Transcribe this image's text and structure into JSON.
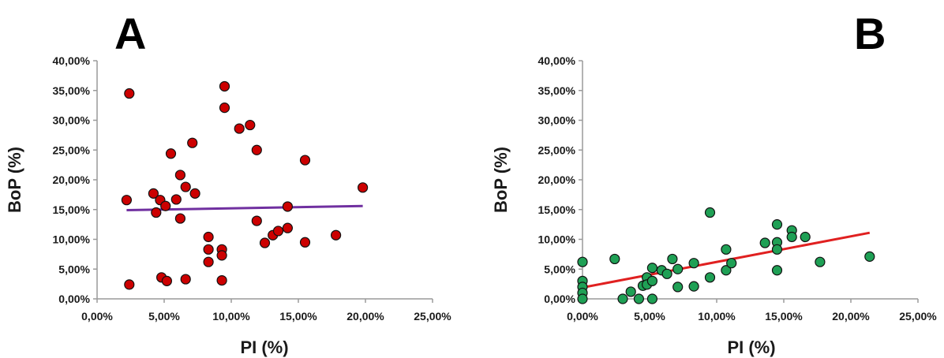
{
  "chart_data": [
    {
      "type": "scatter",
      "panel": "A",
      "xlabel": "PI (%)",
      "ylabel": "BoP (%)",
      "xlim": [
        0,
        25
      ],
      "ylim": [
        0,
        40
      ],
      "x_ticks": [
        "0,00%",
        "5,00%",
        "10,00%",
        "15,00%",
        "20,00%",
        "25,00%"
      ],
      "y_ticks": [
        "0,00%",
        "5,00%",
        "10,00%",
        "15,00%",
        "20,00%",
        "25,00%",
        "30,00%",
        "35,00%",
        "40,00%"
      ],
      "point_color": "#cc0000",
      "trendline_color": "#7030a0",
      "trendline": {
        "x": [
          2.2,
          19.8
        ],
        "y": [
          14.9,
          15.6
        ]
      },
      "points": [
        {
          "x": 2.2,
          "y": 16.6
        },
        {
          "x": 2.4,
          "y": 34.5
        },
        {
          "x": 2.4,
          "y": 2.4
        },
        {
          "x": 4.2,
          "y": 17.7
        },
        {
          "x": 4.4,
          "y": 14.5
        },
        {
          "x": 4.7,
          "y": 16.6
        },
        {
          "x": 4.8,
          "y": 3.6
        },
        {
          "x": 5.1,
          "y": 15.6
        },
        {
          "x": 5.2,
          "y": 3.0
        },
        {
          "x": 5.5,
          "y": 24.4
        },
        {
          "x": 5.9,
          "y": 16.7
        },
        {
          "x": 6.2,
          "y": 20.8
        },
        {
          "x": 6.2,
          "y": 13.5
        },
        {
          "x": 6.6,
          "y": 18.8
        },
        {
          "x": 6.6,
          "y": 3.3
        },
        {
          "x": 7.1,
          "y": 26.2
        },
        {
          "x": 7.3,
          "y": 17.7
        },
        {
          "x": 8.3,
          "y": 10.4
        },
        {
          "x": 8.3,
          "y": 8.3
        },
        {
          "x": 8.3,
          "y": 6.2
        },
        {
          "x": 9.3,
          "y": 8.3
        },
        {
          "x": 9.3,
          "y": 7.3
        },
        {
          "x": 9.3,
          "y": 3.1
        },
        {
          "x": 9.5,
          "y": 35.7
        },
        {
          "x": 9.5,
          "y": 32.1
        },
        {
          "x": 10.6,
          "y": 28.6
        },
        {
          "x": 11.4,
          "y": 29.2
        },
        {
          "x": 11.9,
          "y": 25.0
        },
        {
          "x": 11.9,
          "y": 13.1
        },
        {
          "x": 12.5,
          "y": 9.4
        },
        {
          "x": 13.1,
          "y": 10.7
        },
        {
          "x": 13.5,
          "y": 11.4
        },
        {
          "x": 14.2,
          "y": 11.9
        },
        {
          "x": 14.2,
          "y": 15.5
        },
        {
          "x": 15.5,
          "y": 23.3
        },
        {
          "x": 15.5,
          "y": 9.5
        },
        {
          "x": 17.8,
          "y": 10.7
        },
        {
          "x": 19.8,
          "y": 18.7
        }
      ]
    },
    {
      "type": "scatter",
      "panel": "B",
      "xlabel": "PI (%)",
      "ylabel": "BoP (%)",
      "xlim": [
        0,
        25
      ],
      "ylim": [
        0,
        40
      ],
      "x_ticks": [
        "0,00%",
        "5,00%",
        "10,00%",
        "15,00%",
        "20,00%",
        "25,00%"
      ],
      "y_ticks": [
        "0,00%",
        "5,00%",
        "10,00%",
        "15,00%",
        "20,00%",
        "25,00%",
        "30,00%",
        "35,00%",
        "40,00%"
      ],
      "point_color": "#1fa055",
      "trendline_color": "#e02020",
      "trendline": {
        "x": [
          0,
          21.4
        ],
        "y": [
          1.9,
          11.1
        ]
      },
      "points": [
        {
          "x": 0.0,
          "y": 6.2
        },
        {
          "x": 0.0,
          "y": 3.0
        },
        {
          "x": 0.0,
          "y": 2.0
        },
        {
          "x": 0.0,
          "y": 1.0
        },
        {
          "x": 0.0,
          "y": 0.0
        },
        {
          "x": 2.4,
          "y": 6.7
        },
        {
          "x": 3.0,
          "y": 0.0
        },
        {
          "x": 3.6,
          "y": 1.2
        },
        {
          "x": 4.2,
          "y": 0.0
        },
        {
          "x": 4.5,
          "y": 2.2
        },
        {
          "x": 4.8,
          "y": 3.6
        },
        {
          "x": 4.8,
          "y": 2.4
        },
        {
          "x": 5.2,
          "y": 5.2
        },
        {
          "x": 5.2,
          "y": 3.0
        },
        {
          "x": 5.2,
          "y": 0.0
        },
        {
          "x": 5.9,
          "y": 4.8
        },
        {
          "x": 6.3,
          "y": 4.2
        },
        {
          "x": 6.7,
          "y": 6.7
        },
        {
          "x": 7.1,
          "y": 5.0
        },
        {
          "x": 7.1,
          "y": 2.0
        },
        {
          "x": 8.3,
          "y": 6.0
        },
        {
          "x": 8.3,
          "y": 2.1
        },
        {
          "x": 9.5,
          "y": 14.5
        },
        {
          "x": 9.5,
          "y": 3.6
        },
        {
          "x": 10.7,
          "y": 8.3
        },
        {
          "x": 10.7,
          "y": 4.8
        },
        {
          "x": 11.1,
          "y": 6.0
        },
        {
          "x": 13.6,
          "y": 9.4
        },
        {
          "x": 14.5,
          "y": 12.5
        },
        {
          "x": 14.5,
          "y": 9.5
        },
        {
          "x": 14.5,
          "y": 8.3
        },
        {
          "x": 14.5,
          "y": 4.8
        },
        {
          "x": 15.6,
          "y": 11.5
        },
        {
          "x": 15.6,
          "y": 10.4
        },
        {
          "x": 16.6,
          "y": 10.4
        },
        {
          "x": 17.7,
          "y": 6.2
        },
        {
          "x": 21.4,
          "y": 7.1
        }
      ]
    }
  ]
}
